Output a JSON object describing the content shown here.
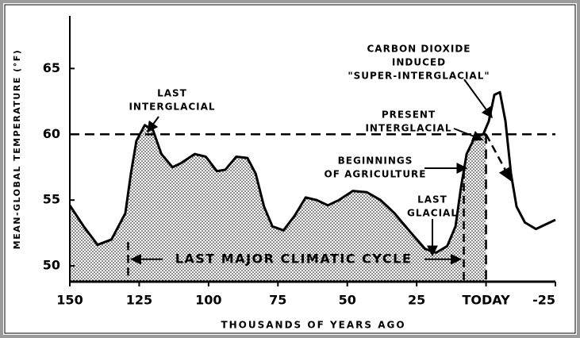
{
  "chart_data": {
    "type": "line",
    "y_label": "MEAN-GLOBAL TEMPERATURE (°F)",
    "x_label": "THOUSANDS OF YEARS AGO",
    "xlim": [
      150,
      -25
    ],
    "ylim": [
      48.8,
      69
    ],
    "xticks": [
      150,
      125,
      100,
      75,
      50,
      25,
      {
        "value": 0,
        "label": "TODAY"
      },
      -25
    ],
    "yticks": [
      50,
      55,
      60,
      65
    ],
    "reference_y": 60,
    "cycle": [
      129,
      8
    ],
    "fill_to": 0,
    "series": [
      {
        "color": "#000000",
        "x": [
          150,
          145,
          140,
          135,
          130,
          128,
          126,
          123,
          120,
          117,
          113,
          110,
          105,
          101,
          97,
          94,
          90,
          86,
          83,
          80,
          77,
          73,
          69,
          65,
          61,
          57,
          53,
          48,
          43,
          38,
          33,
          27,
          22,
          18,
          14,
          11,
          9,
          7,
          4,
          1,
          -1,
          -3,
          -5,
          -7,
          -9,
          -11,
          -14,
          -18,
          -22,
          -25
        ],
        "values": [
          54.6,
          53,
          51.6,
          52,
          54,
          57,
          59.5,
          60.7,
          60.3,
          58.5,
          57.5,
          57.8,
          58.5,
          58.3,
          57.2,
          57.3,
          58.3,
          58.2,
          57,
          54.5,
          53,
          52.7,
          53.8,
          55.2,
          55,
          54.6,
          55,
          55.7,
          55.6,
          55,
          54,
          52.5,
          51.3,
          51,
          51.5,
          53,
          56,
          58.5,
          59.8,
          60,
          61,
          63,
          63.2,
          61,
          57,
          54.5,
          53.3,
          52.8,
          53.2,
          53.5
        ]
      },
      {
        "color": "#000000",
        "style": "dashed",
        "x": [
          0,
          -9
        ],
        "values": [
          60,
          56.5
        ]
      }
    ],
    "annotations": [
      [
        "LAST",
        "INTERGLACIAL"
      ],
      [
        "CARBON DIOXIDE",
        "INDUCED",
        "\"SUPER-INTERGLACIAL\""
      ],
      [
        "PRESENT",
        "INTERGLACIAL"
      ],
      [
        "BEGINNINGS",
        "OF AGRICULTURE"
      ],
      [
        "LAST",
        "GLACIAL"
      ],
      "LAST MAJOR CLIMATIC CYCLE"
    ]
  }
}
